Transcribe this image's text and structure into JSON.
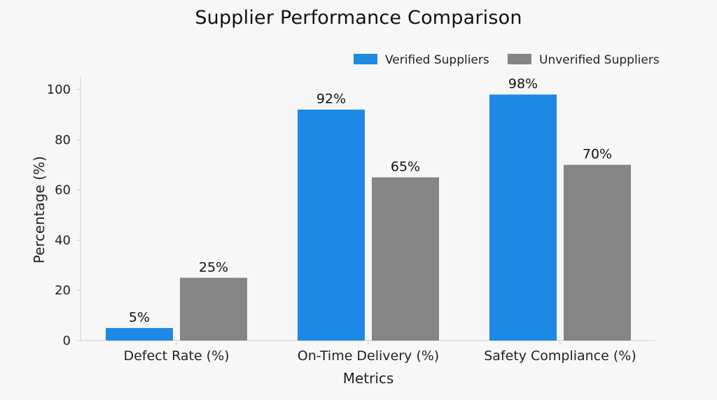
{
  "chart_data": {
    "type": "bar",
    "title": "Supplier Performance Comparison",
    "xlabel": "Metrics",
    "ylabel": "Percentage (%)",
    "categories": [
      "Defect Rate (%)",
      "On-Time Delivery (%)",
      "Safety Compliance (%)"
    ],
    "series": [
      {
        "name": "Verified Suppliers",
        "color": "#1e88e5",
        "values": [
          5,
          92,
          98
        ],
        "labels": [
          "5%",
          "92%",
          "98%"
        ]
      },
      {
        "name": "Unverified Suppliers",
        "color": "#858585",
        "values": [
          25,
          65,
          70
        ],
        "labels": [
          "25%",
          "65%",
          "70%"
        ]
      }
    ],
    "ylim": [
      0,
      100
    ],
    "yticks": [
      0,
      20,
      40,
      60,
      80,
      100
    ],
    "grid": false,
    "legend_position": "top-right"
  }
}
